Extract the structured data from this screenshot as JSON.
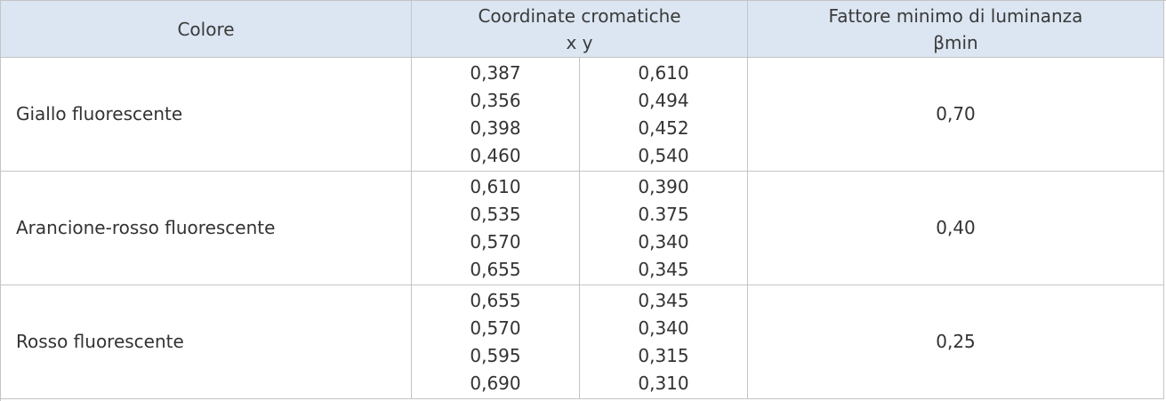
{
  "table": {
    "header": {
      "color": "Colore",
      "coordinates": [
        "Coordinate cromatiche",
        "x y"
      ],
      "luminance": [
        "Fattore minimo di luminanza",
        "βmin"
      ]
    },
    "rows": [
      {
        "color": "Giallo fluorescente",
        "x": [
          "0,387",
          "0,356",
          "0,398",
          "0,460"
        ],
        "y": [
          "0,610",
          "0,494",
          "0,452",
          "0,540"
        ],
        "beta": "0,70"
      },
      {
        "color": "Arancione-rosso fluorescente",
        "x": [
          "0,610",
          "0,535",
          "0,570",
          "0,655"
        ],
        "y": [
          "0,390",
          "0.375",
          "0,340",
          "0,345"
        ],
        "beta": "0,40"
      },
      {
        "color": "Rosso fluorescente",
        "x": [
          "0,655",
          "0,570",
          "0,595",
          "0,690"
        ],
        "y": [
          "0,345",
          "0,340",
          "0,315",
          "0,310"
        ],
        "beta": "0,25"
      }
    ]
  }
}
